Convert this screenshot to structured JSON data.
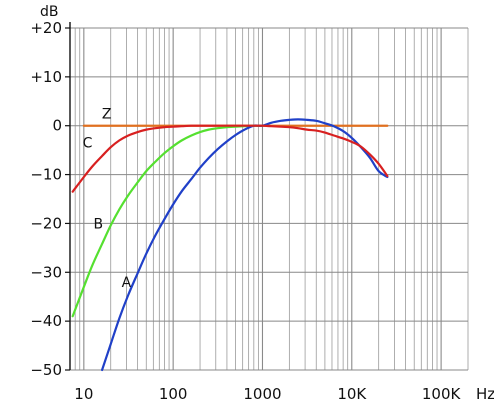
{
  "chart_data": {
    "type": "line",
    "title": "",
    "ylabel": "dB",
    "xlabel": "Hz",
    "xscale": "log",
    "xlim": [
      7,
      200000
    ],
    "ylim": [
      -50,
      20
    ],
    "grid": true,
    "yticks": [
      {
        "value": 20,
        "label": "+20"
      },
      {
        "value": 10,
        "label": "+10"
      },
      {
        "value": 0,
        "label": "0"
      },
      {
        "value": -10,
        "label": "−10"
      },
      {
        "value": -20,
        "label": "−20"
      },
      {
        "value": -30,
        "label": "−30"
      },
      {
        "value": -40,
        "label": "−40"
      },
      {
        "value": -50,
        "label": "−50"
      }
    ],
    "xticks": [
      {
        "value": 10,
        "label": "10"
      },
      {
        "value": 100,
        "label": "100"
      },
      {
        "value": 1000,
        "label": "1000"
      },
      {
        "value": 10000,
        "label": "10K"
      },
      {
        "value": 100000,
        "label": "100K"
      }
    ],
    "series": [
      {
        "name": "A",
        "color": "#2040c8",
        "label_at": [
          30,
          -33
        ],
        "x": [
          16,
          20,
          25,
          31.5,
          40,
          50,
          63,
          80,
          100,
          125,
          160,
          200,
          250,
          315,
          400,
          500,
          630,
          800,
          1000,
          1250,
          1600,
          2000,
          2500,
          3150,
          4000,
          5000,
          6300,
          8000,
          10000,
          12500,
          16000,
          20000,
          25000
        ],
        "y": [
          -50,
          -44.7,
          -39.4,
          -34.6,
          -30.2,
          -26.2,
          -22.5,
          -19.1,
          -16.1,
          -13.4,
          -10.9,
          -8.6,
          -6.6,
          -4.8,
          -3.2,
          -1.9,
          -0.8,
          0,
          0,
          0.6,
          1.0,
          1.2,
          1.3,
          1.2,
          1.0,
          0.5,
          -0.1,
          -1.1,
          -2.5,
          -4.3,
          -6.6,
          -9.3,
          -10.5
        ]
      },
      {
        "name": "B",
        "color": "#55e030",
        "label_at": [
          14.5,
          -21
        ],
        "x": [
          7.5,
          10,
          12.5,
          16,
          20,
          25,
          31.5,
          40,
          50,
          63,
          80,
          100,
          125,
          160,
          200,
          250,
          315,
          400,
          500,
          630,
          800,
          1000
        ],
        "y": [
          -39,
          -33,
          -28.5,
          -24.2,
          -20.4,
          -17.1,
          -14.2,
          -11.6,
          -9.3,
          -7.4,
          -5.6,
          -4.2,
          -3.0,
          -2.0,
          -1.3,
          -0.8,
          -0.5,
          -0.3,
          -0.2,
          -0.1,
          0,
          0
        ]
      },
      {
        "name": "C",
        "color": "#d82020",
        "label_at": [
          11,
          -4.5
        ],
        "x": [
          7.5,
          10,
          12.5,
          16,
          20,
          25,
          31.5,
          40,
          50,
          63,
          80,
          100,
          125,
          160,
          200,
          300,
          500,
          800,
          1000,
          1250,
          1600,
          2000,
          2500,
          3150,
          4000,
          5000,
          6300,
          8000,
          10000,
          12500,
          16000,
          20000,
          25000
        ],
        "y": [
          -13.5,
          -10.5,
          -8.3,
          -6.2,
          -4.4,
          -3.0,
          -2.0,
          -1.3,
          -0.8,
          -0.5,
          -0.3,
          -0.2,
          -0.1,
          0,
          0,
          0,
          0,
          0,
          0,
          -0.1,
          -0.2,
          -0.3,
          -0.5,
          -0.8,
          -1.0,
          -1.4,
          -2.0,
          -2.6,
          -3.3,
          -4.2,
          -5.9,
          -7.8,
          -10.3
        ]
      },
      {
        "name": "Z",
        "color": "#e07020",
        "label_at": [
          18,
          1.5
        ],
        "x": [
          10,
          25000
        ],
        "y": [
          0,
          0
        ]
      }
    ]
  }
}
